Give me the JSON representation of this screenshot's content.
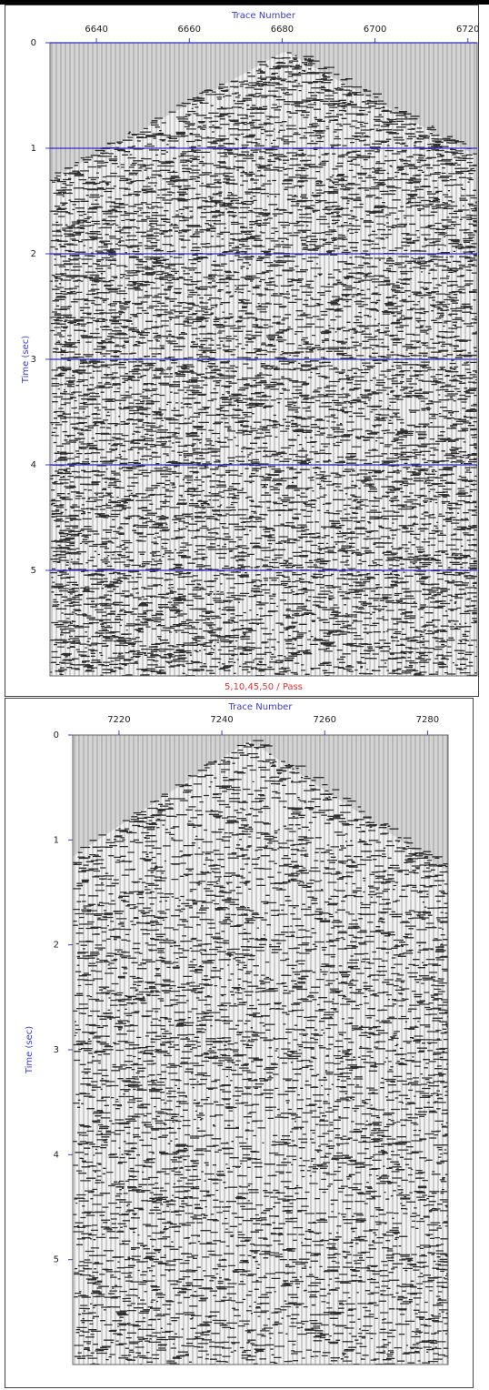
{
  "chart_data": [
    {
      "type": "seismic",
      "xlabel": "Trace Number",
      "ylabel": "Time (sec)",
      "subtitle": "5,10,45,50 / Pass",
      "xlim": [
        6630,
        6722
      ],
      "xticks": [
        6640,
        6660,
        6680,
        6700,
        6720
      ],
      "ylim": [
        0,
        6
      ],
      "yticks": [
        0,
        1,
        2,
        3,
        4,
        5
      ],
      "grid": true,
      "grid_color": "#2d2dc8",
      "label_color": "#3a3ad0"
    },
    {
      "type": "seismic",
      "xlabel": "Trace Number",
      "ylabel": "Time (sec)",
      "xlim": [
        7211,
        7284
      ],
      "xticks": [
        7220,
        7240,
        7260,
        7280
      ],
      "ylim": [
        0,
        6
      ],
      "yticks": [
        0,
        1,
        2,
        3,
        4,
        5
      ],
      "grid": false,
      "grid_color": "#2d2dc8",
      "label_color": "#3a3ad0"
    }
  ]
}
